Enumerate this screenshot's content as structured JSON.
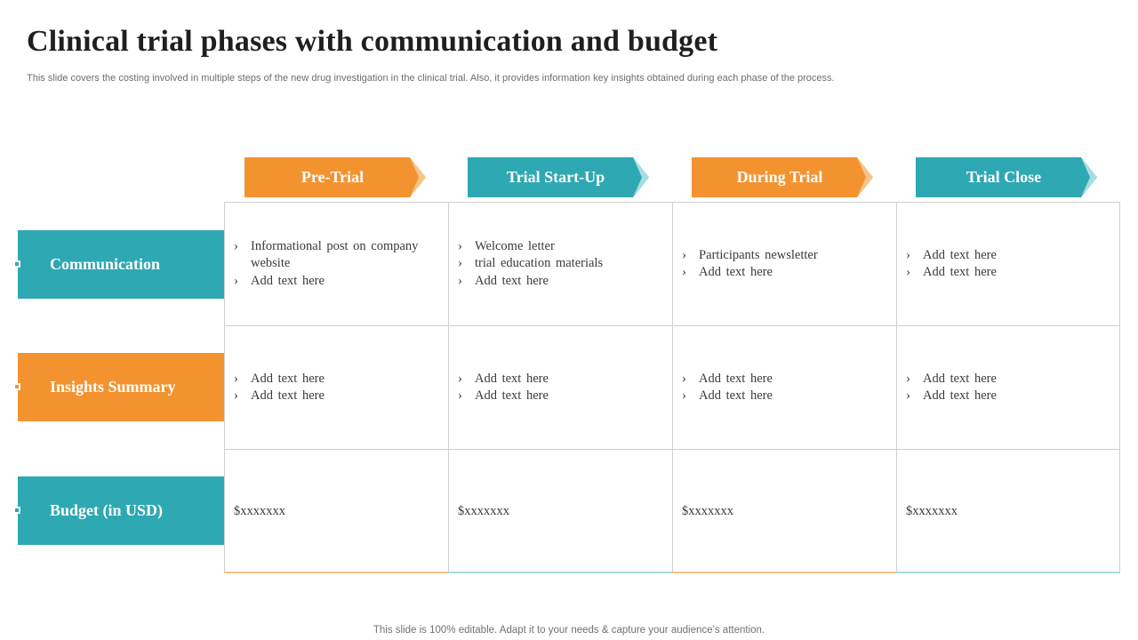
{
  "title": "Clinical trial phases with communication  and budget",
  "subtitle": "This slide covers the costing involved in multiple steps of the new drug investigation in the clinical trial. Also, it provides information key insights obtained during each phase of the process.",
  "footer": "This slide is 100% editable. Adapt it to your needs & capture your audience’s attention.",
  "colors": {
    "orange": "#F39330",
    "teal": "#2EA8B3",
    "orange_light": "#F7C48A",
    "teal_light": "#A6DDE2"
  },
  "phases": [
    {
      "label": "Pre-Trial",
      "color": "orange"
    },
    {
      "label": "Trial Start-Up",
      "color": "teal"
    },
    {
      "label": "During Trial",
      "color": "orange"
    },
    {
      "label": "Trial Close",
      "color": "teal"
    }
  ],
  "rows": [
    {
      "label": "Communication",
      "color": "teal",
      "cells": [
        [
          "Informational  post on company website",
          "Add text  here"
        ],
        [
          "Welcome  letter",
          "trial  education  materials",
          "Add text  here"
        ],
        [
          "Participants  newsletter",
          "Add text  here"
        ],
        [
          "Add text  here",
          "Add text  here"
        ]
      ]
    },
    {
      "label": "Insights Summary",
      "color": "orange",
      "cells": [
        [
          "Add text  here",
          "Add text  here"
        ],
        [
          "Add text  here",
          "Add text  here"
        ],
        [
          "Add text  here",
          "Add text  here"
        ],
        [
          "Add text  here",
          "Add text  here"
        ]
      ]
    },
    {
      "label": "Budget (in USD)",
      "color": "teal",
      "cells": [
        "$xxxxxxx",
        "$xxxxxxx",
        "$xxxxxxx",
        "$xxxxxxx"
      ]
    }
  ]
}
